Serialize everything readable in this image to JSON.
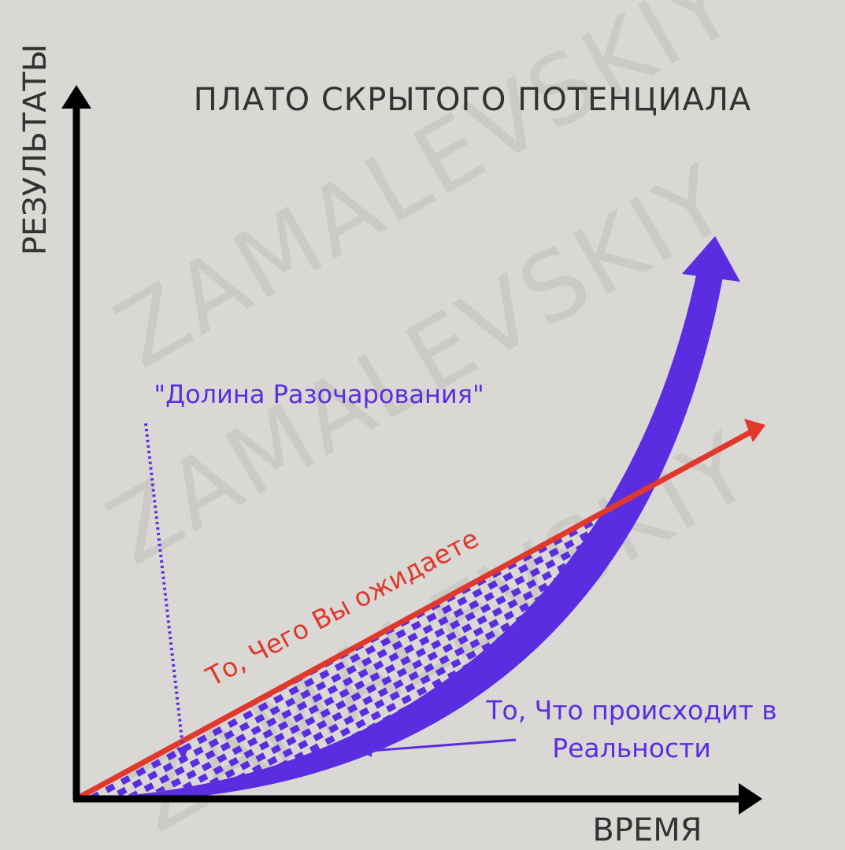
{
  "title": "ПЛАТО СКРЫТОГО ПОТЕНЦИАЛА",
  "axes": {
    "y_label": "РЕЗУЛЬТАТЫ",
    "x_label": "ВРЕМЯ"
  },
  "annotations": {
    "valley": "\"Долина Разочарования\"",
    "expected": "То, Чего Вы ожидаете",
    "reality": [
      "То, Что происходит в",
      "Реальности"
    ]
  },
  "watermark": "ZAMALEVSKIY"
}
